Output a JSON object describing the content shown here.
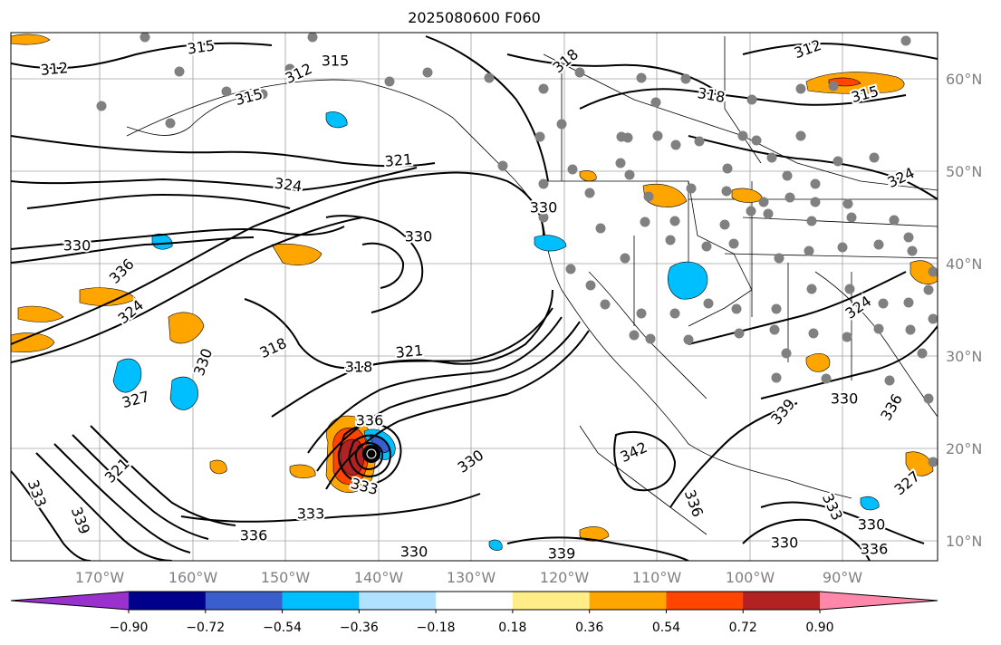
{
  "title": "2025080600 F060",
  "lon_labels": [
    "170°W",
    "160°W",
    "150°W",
    "140°W",
    "130°W",
    "120°W",
    "110°W",
    "100°W",
    "90°W"
  ],
  "lat_labels": [
    "60°N",
    "50°N",
    "40°N",
    "30°N",
    "20°N",
    "10°N"
  ],
  "contour_labels": [
    "312",
    "315",
    "315",
    "312",
    "318",
    "318",
    "312",
    "315",
    "315",
    "324",
    "321",
    "324",
    "330",
    "330",
    "330",
    "336",
    "324",
    "318",
    "321",
    "318",
    "330",
    "327",
    "321",
    "336",
    "333",
    "333",
    "339",
    "330",
    "336",
    "333",
    "330",
    "339",
    "342",
    "336",
    "339",
    "336",
    "333",
    "330",
    "330",
    "330",
    "327",
    "324",
    "336"
  ],
  "colorbar": {
    "ticks": [
      "−0.90",
      "−0.72",
      "−0.54",
      "−0.36",
      "−0.18",
      "0.18",
      "0.36",
      "0.54",
      "0.72",
      "0.90"
    ],
    "colors": [
      "#9932cc",
      "#00008b",
      "#3a5fcd",
      "#00bfff",
      "#b0e2ff",
      "#ffffff",
      "#ffee88",
      "#ffa500",
      "#ff4500",
      "#b22222",
      "#ff88aa"
    ]
  },
  "stations_icon": "gray-circle-station-marker",
  "storm_icon": "hurricane-center-marker"
}
